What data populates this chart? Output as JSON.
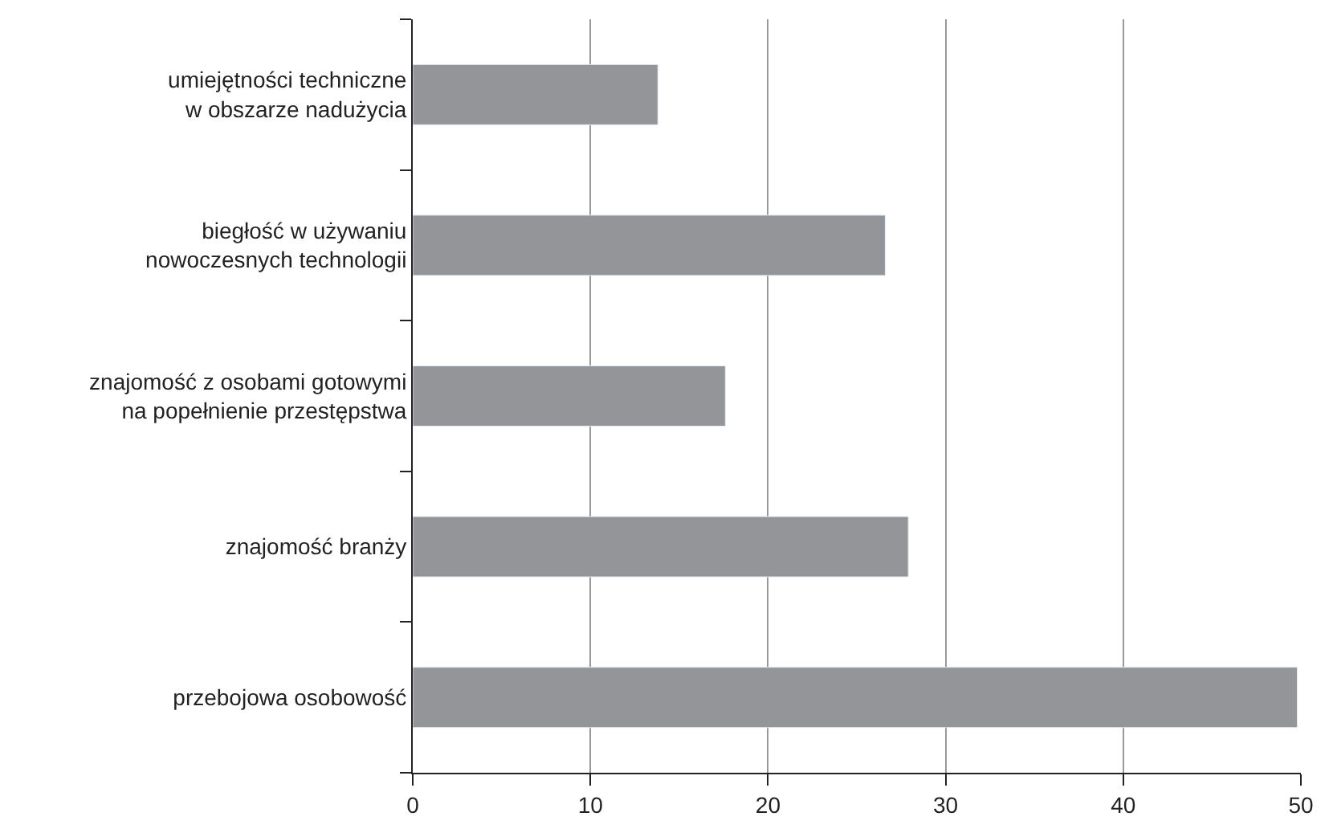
{
  "chart_data": {
    "type": "bar",
    "orientation": "horizontal",
    "categories": [
      "umiejętności techniczne\nw obszarze nadużycia",
      "biegłość w używaniu\nnowoczesnych technologii",
      "znajomość z osobami gotowymi\nna popełnienie przestępstwa",
      "znajomość branży",
      "przebojowa osobowość"
    ],
    "values": [
      13.8,
      26.6,
      17.6,
      27.9,
      49.8
    ],
    "color": "#939598",
    "xlim": [
      0,
      50
    ],
    "xticks": [
      0,
      10,
      20,
      30,
      40,
      50
    ],
    "grid": "x"
  }
}
